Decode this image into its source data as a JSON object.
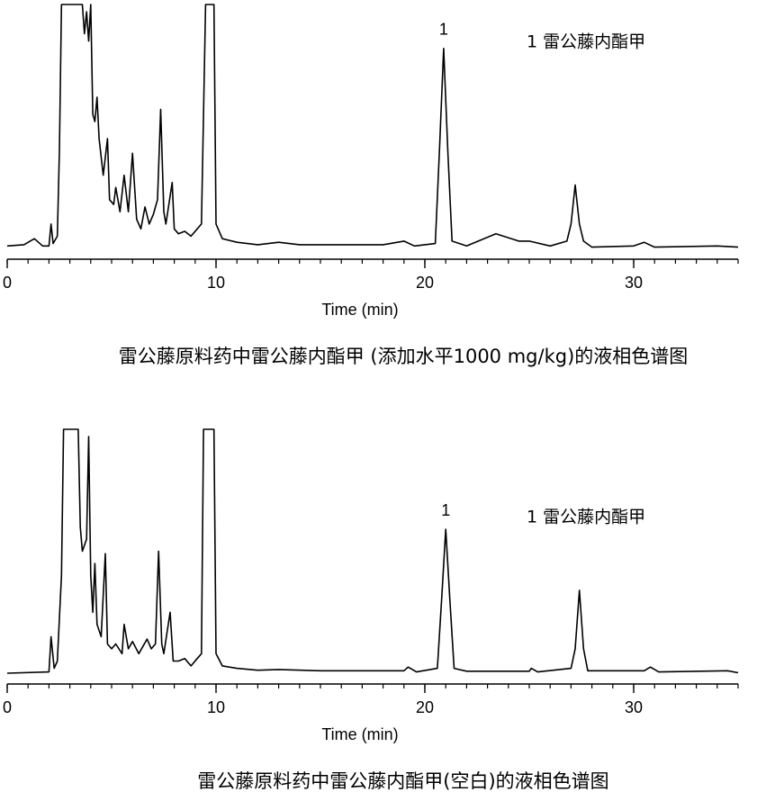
{
  "chart_data": [
    {
      "type": "line",
      "xlabel": "Time (min)",
      "caption": "雷公藤原料药中雷公藤内酯甲 (添加水平1000 mg/kg)的液相色谱图",
      "legend_text": "1  雷公藤内酯甲",
      "peak_labels": [
        {
          "text": "1",
          "x": 20.9
        }
      ],
      "xlim": [
        0,
        35
      ],
      "xticks": [
        0,
        10,
        20,
        30
      ],
      "xminorticks": [
        0,
        1,
        2,
        3,
        4,
        5,
        6,
        7,
        8,
        9,
        10,
        11,
        12,
        13,
        14,
        15,
        16,
        17,
        18,
        19,
        20,
        21,
        22,
        23,
        24,
        25,
        26,
        27,
        28,
        29,
        30,
        31,
        32,
        33,
        34,
        35
      ],
      "ylim": [
        0,
        100
      ],
      "color": "#000000",
      "x": [
        0,
        0.8,
        1.3,
        1.7,
        2.0,
        2.1,
        2.2,
        2.4,
        2.5,
        2.6,
        3.0,
        3.5,
        3.6,
        3.7,
        3.8,
        3.9,
        4.0,
        4.1,
        4.2,
        4.3,
        4.4,
        4.6,
        4.8,
        4.9,
        5.1,
        5.2,
        5.4,
        5.6,
        5.8,
        6.0,
        6.2,
        6.4,
        6.6,
        6.8,
        7.0,
        7.2,
        7.35,
        7.5,
        7.6,
        7.9,
        8.0,
        8.2,
        8.5,
        8.8,
        9.1,
        9.3,
        9.5,
        9.9,
        10.0,
        10.3,
        11,
        12,
        13,
        14,
        16,
        18,
        19,
        19.5,
        20.5,
        20.7,
        20.9,
        21.1,
        21.3,
        22,
        23.4,
        24.5,
        25,
        26,
        26.8,
        27.0,
        27.2,
        27.4,
        27.6,
        28,
        30,
        30.5,
        31,
        34,
        35
      ],
      "values": [
        1,
        1.5,
        4,
        1,
        1,
        10,
        2,
        5,
        40,
        100,
        100,
        100,
        100,
        88,
        97,
        85,
        100,
        55,
        52,
        62,
        45,
        30,
        45,
        20,
        18,
        25,
        15,
        30,
        15,
        39,
        12,
        8,
        17,
        10,
        14,
        20,
        57,
        15,
        10,
        27,
        8,
        6,
        7,
        5,
        8,
        10,
        100,
        100,
        10,
        4,
        2.5,
        1.5,
        2.5,
        1.5,
        1.5,
        1.5,
        3,
        1,
        2,
        40,
        82,
        40,
        3,
        1,
        6,
        3,
        3,
        1,
        3,
        10,
        26,
        10,
        3,
        0.5,
        1,
        2.5,
        0.5,
        1,
        0.5
      ]
    },
    {
      "type": "line",
      "xlabel": "Time (min)",
      "caption": "雷公藤原料药中雷公藤内酯甲(空白)的液相色谱图",
      "legend_text": "1  雷公藤内酯甲",
      "peak_labels": [
        {
          "text": "1",
          "x": 21.0
        }
      ],
      "xlim": [
        0,
        35
      ],
      "xticks": [
        0,
        10,
        20,
        30
      ],
      "xminorticks": [
        0,
        1,
        2,
        3,
        4,
        5,
        6,
        7,
        8,
        9,
        10,
        11,
        12,
        13,
        14,
        15,
        16,
        17,
        18,
        19,
        20,
        21,
        22,
        23,
        24,
        25,
        26,
        27,
        28,
        29,
        30,
        31,
        32,
        33,
        34,
        35
      ],
      "ylim": [
        0,
        100
      ],
      "color": "#000000",
      "x": [
        0,
        2,
        2.1,
        2.25,
        2.4,
        2.6,
        2.7,
        3.4,
        3.5,
        3.6,
        3.8,
        3.9,
        4.0,
        4.1,
        4.2,
        4.3,
        4.5,
        4.7,
        4.8,
        5.0,
        5.2,
        5.5,
        5.6,
        5.8,
        6.0,
        6.3,
        6.5,
        6.7,
        6.9,
        7.1,
        7.25,
        7.4,
        7.5,
        7.8,
        7.95,
        8.2,
        8.5,
        8.8,
        9.1,
        9.3,
        9.4,
        9.9,
        10,
        10.3,
        11,
        12,
        13,
        15,
        17,
        19,
        19.2,
        19.6,
        20.6,
        20.8,
        21.0,
        21.2,
        21.4,
        22,
        25,
        25.1,
        25.4,
        27,
        27.2,
        27.4,
        27.6,
        27.8,
        30.5,
        30.8,
        31.2,
        34.5,
        35
      ],
      "values": [
        0,
        0.5,
        15,
        2,
        5,
        40,
        100,
        100,
        60,
        50,
        55,
        97,
        40,
        25,
        45,
        20,
        15,
        49,
        12,
        10,
        12,
        8,
        20,
        10,
        13,
        8,
        11,
        14,
        10,
        12,
        50,
        12,
        8,
        25,
        5,
        5,
        6,
        3,
        6,
        8,
        100,
        100,
        8,
        3,
        2,
        1.2,
        1.5,
        1,
        1,
        1,
        2.5,
        0.5,
        2,
        30,
        59,
        30,
        2,
        0.8,
        0.8,
        2,
        0.5,
        2,
        10,
        34,
        10,
        1,
        1,
        2.5,
        0.5,
        1,
        0.2
      ]
    }
  ]
}
